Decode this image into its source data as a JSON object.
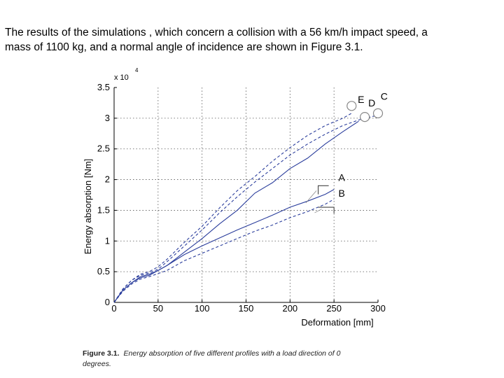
{
  "intro": {
    "line1": "The results of the simulations , which concern a collision with a 56 km/h impact speed, a",
    "line2": "mass of 1100 kg, and a normal angle of incidence are shown in Figure 3.1."
  },
  "chart_data": {
    "type": "line",
    "ylabel": "Energy absorption [Nm]",
    "xlabel": "Deformation [mm]",
    "y_multiplier": "x 10",
    "y_multiplier_exp": "4",
    "xlim": [
      0,
      300
    ],
    "ylim": [
      0,
      3.5
    ],
    "x_ticks": [
      "0",
      "50",
      "100",
      "150",
      "200",
      "250",
      "300"
    ],
    "y_ticks": [
      "0",
      "0.5",
      "1",
      "1.5",
      "2",
      "2.5",
      "3",
      "3.5"
    ],
    "grid": true,
    "series": [
      {
        "name": "C",
        "style": "dashed",
        "x": [
          0,
          10,
          20,
          30,
          40,
          50,
          60,
          80,
          100,
          120,
          140,
          160,
          180,
          200,
          220,
          240,
          260,
          280,
          300
        ],
        "y": [
          0,
          0.22,
          0.36,
          0.44,
          0.48,
          0.54,
          0.66,
          0.92,
          1.18,
          1.46,
          1.72,
          1.96,
          2.18,
          2.4,
          2.58,
          2.74,
          2.88,
          2.98,
          3.05
        ]
      },
      {
        "name": "D",
        "style": "solid",
        "x": [
          0,
          10,
          20,
          30,
          40,
          50,
          60,
          80,
          100,
          120,
          140,
          160,
          180,
          200,
          220,
          240,
          260,
          278
        ],
        "y": [
          0,
          0.2,
          0.32,
          0.42,
          0.46,
          0.52,
          0.6,
          0.82,
          1.04,
          1.28,
          1.5,
          1.78,
          1.95,
          2.18,
          2.35,
          2.58,
          2.78,
          2.95
        ]
      },
      {
        "name": "E",
        "style": "dashed",
        "x": [
          0,
          10,
          20,
          30,
          40,
          50,
          60,
          80,
          100,
          120,
          140,
          160,
          180,
          200,
          220,
          240,
          260,
          270
        ],
        "y": [
          0,
          0.22,
          0.36,
          0.46,
          0.5,
          0.58,
          0.7,
          0.98,
          1.24,
          1.54,
          1.82,
          2.05,
          2.3,
          2.52,
          2.72,
          2.88,
          3.0,
          3.08
        ]
      },
      {
        "name": "A",
        "style": "solid",
        "x": [
          0,
          10,
          20,
          30,
          40,
          60,
          80,
          100,
          120,
          140,
          160,
          180,
          200,
          220,
          240,
          250
        ],
        "y": [
          0,
          0.2,
          0.32,
          0.4,
          0.44,
          0.6,
          0.78,
          0.92,
          1.05,
          1.18,
          1.3,
          1.42,
          1.55,
          1.65,
          1.76,
          1.84
        ]
      },
      {
        "name": "B",
        "style": "dashed",
        "x": [
          0,
          10,
          20,
          30,
          40,
          60,
          80,
          100,
          120,
          140,
          160,
          180,
          200,
          220,
          240,
          250
        ],
        "y": [
          0,
          0.18,
          0.3,
          0.38,
          0.42,
          0.52,
          0.68,
          0.8,
          0.92,
          1.04,
          1.16,
          1.26,
          1.38,
          1.48,
          1.6,
          1.68
        ]
      }
    ],
    "legend_labels": [
      "E",
      "D",
      "C",
      "A",
      "B"
    ]
  },
  "caption": {
    "label": "Figure 3.1.",
    "text": "Energy absorption of five different profiles with a load direction of 0",
    "text2": "degrees."
  }
}
